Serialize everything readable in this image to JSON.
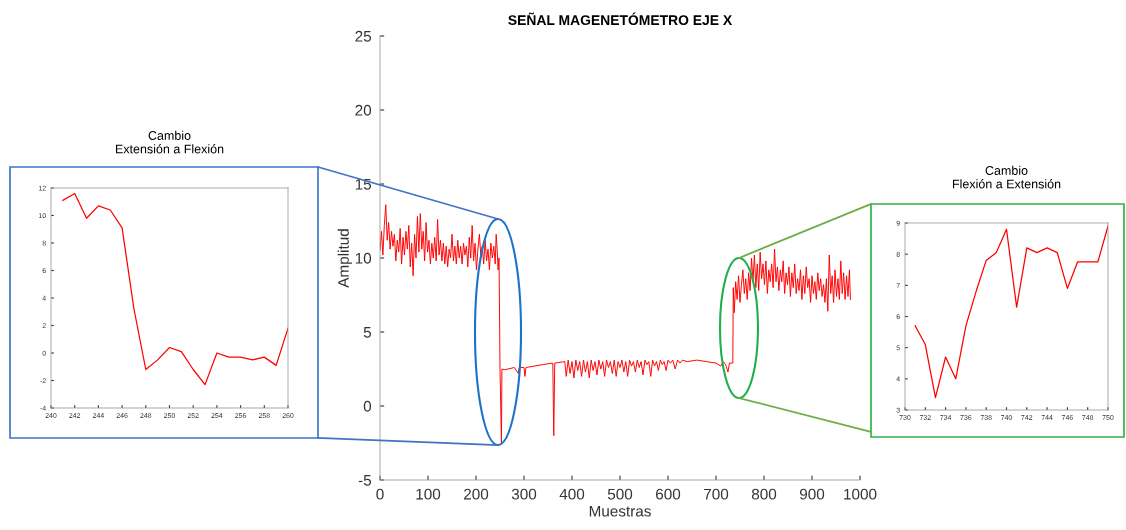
{
  "chart_data": [
    {
      "type": "line",
      "title": "SEÑAL MAGENETÓMETRO EJE X",
      "xlabel": "Muestras",
      "ylabel": "Amplitud",
      "xlim": [
        0,
        1000
      ],
      "xticks": [
        0,
        100,
        200,
        300,
        400,
        500,
        600,
        700,
        800,
        900,
        1000
      ],
      "ylim": [
        -5,
        25
      ],
      "yticks": [
        -5,
        0,
        5,
        10,
        15,
        20,
        25
      ],
      "series": [
        {
          "color": "#ff0000",
          "x": [
            0,
            3,
            6,
            9,
            12,
            15,
            18,
            21,
            24,
            27,
            30,
            33,
            36,
            39,
            42,
            45,
            48,
            51,
            54,
            57,
            60,
            63,
            66,
            69,
            72,
            75,
            78,
            81,
            84,
            87,
            90,
            93,
            96,
            99,
            102,
            105,
            108,
            111,
            114,
            117,
            120,
            123,
            126,
            129,
            132,
            135,
            138,
            141,
            144,
            147,
            150,
            153,
            156,
            159,
            162,
            165,
            168,
            171,
            174,
            177,
            180,
            183,
            186,
            189,
            192,
            195,
            198,
            201,
            204,
            207,
            210,
            213,
            216,
            219,
            222,
            225,
            228,
            231,
            234,
            237,
            240,
            242,
            244,
            246,
            248,
            250,
            253,
            254,
            260,
            280,
            288,
            290,
            300,
            302,
            304,
            340,
            360,
            362,
            364,
            385,
            388,
            392,
            396,
            400,
            404,
            408,
            412,
            416,
            420,
            424,
            428,
            432,
            436,
            440,
            444,
            448,
            452,
            456,
            460,
            464,
            468,
            472,
            476,
            480,
            484,
            488,
            492,
            496,
            500,
            504,
            508,
            512,
            516,
            520,
            524,
            528,
            532,
            536,
            540,
            544,
            548,
            552,
            556,
            560,
            564,
            568,
            572,
            576,
            580,
            584,
            588,
            592,
            596,
            600,
            605,
            610,
            615,
            620,
            625,
            630,
            640,
            660,
            680,
            700,
            710,
            715,
            720,
            725,
            728,
            735,
            736,
            738,
            741,
            744,
            747,
            750,
            753,
            756,
            759,
            762,
            765,
            768,
            771,
            774,
            777,
            780,
            783,
            786,
            789,
            792,
            795,
            798,
            801,
            804,
            807,
            810,
            813,
            816,
            819,
            822,
            825,
            828,
            831,
            834,
            837,
            840,
            843,
            846,
            849,
            852,
            855,
            858,
            861,
            864,
            867,
            870,
            873,
            876,
            879,
            882,
            885,
            888,
            891,
            894,
            897,
            900,
            903,
            906,
            909,
            912,
            915,
            918,
            921,
            924,
            927,
            930,
            933,
            936,
            939,
            942,
            945,
            948,
            951,
            954,
            957,
            960,
            963,
            966,
            969,
            972,
            975,
            978,
            980
          ],
          "values": [
            10.5,
            11.8,
            10.2,
            12.2,
            13.6,
            11.2,
            12.4,
            10.6,
            11.8,
            10.8,
            11.6,
            9.8,
            11.2,
            10.4,
            12.0,
            9.6,
            11.4,
            10.2,
            11.8,
            10.6,
            12.2,
            9.4,
            11.0,
            8.8,
            11.6,
            10.0,
            12.8,
            10.4,
            13.0,
            10.6,
            11.8,
            9.8,
            12.4,
            10.4,
            11.2,
            9.6,
            11.0,
            10.0,
            11.4,
            9.8,
            12.6,
            10.2,
            11.2,
            9.8,
            11.0,
            9.6,
            10.8,
            9.4,
            10.6,
            10.0,
            11.6,
            9.8,
            10.8,
            9.6,
            11.2,
            10.0,
            10.8,
            9.6,
            11.0,
            10.2,
            10.8,
            9.4,
            11.4,
            10.0,
            12.2,
            9.8,
            11.0,
            9.2,
            10.6,
            11.6,
            10.2,
            10.8,
            9.6,
            11.2,
            9.8,
            10.6,
            9.2,
            11.0,
            10.0,
            10.8,
            9.6,
            11.6,
            10.6,
            9.2,
            10.0,
            2.5,
            -2.5,
            2.5,
            2.45,
            2.6,
            2.2,
            2.6,
            2.6,
            2.0,
            2.6,
            2.8,
            2.9,
            -2.0,
            2.9,
            3.0,
            2.0,
            3.1,
            2.2,
            3.0,
            1.9,
            3.1,
            2.4,
            3.0,
            2.0,
            3.1,
            2.3,
            3.0,
            1.9,
            3.1,
            2.4,
            3.0,
            2.1,
            3.1,
            2.5,
            3.0,
            2.0,
            3.1,
            2.6,
            3.0,
            2.2,
            3.1,
            2.0,
            3.0,
            2.6,
            3.1,
            2.3,
            3.0,
            2.0,
            3.1,
            2.7,
            3.0,
            2.3,
            3.1,
            2.6,
            3.0,
            2.1,
            3.1,
            2.8,
            3.0,
            2.0,
            3.1,
            2.7,
            3.0,
            2.4,
            3.1,
            2.8,
            3.0,
            2.4,
            3.1,
            2.9,
            3.1,
            2.5,
            3.1,
            2.9,
            3.1,
            3.0,
            3.1,
            3.0,
            2.9,
            2.7,
            3.0,
            2.8,
            2.3,
            2.9,
            2.9,
            8.0,
            6.3,
            8.4,
            7.2,
            8.8,
            7.0,
            8.2,
            9.2,
            7.6,
            8.6,
            7.2,
            9.0,
            7.8,
            10.0,
            8.4,
            10.2,
            8.0,
            9.6,
            7.8,
            10.4,
            8.6,
            9.6,
            8.2,
            9.8,
            7.6,
            9.2,
            8.4,
            9.6,
            8.0,
            10.6,
            8.4,
            9.4,
            7.8,
            9.2,
            8.4,
            9.8,
            7.6,
            9.0,
            8.2,
            9.4,
            7.4,
            9.0,
            8.0,
            9.6,
            7.6,
            8.6,
            7.8,
            9.2,
            7.2,
            8.8,
            7.6,
            9.4,
            8.0,
            8.6,
            7.0,
            8.8,
            7.6,
            8.4,
            7.2,
            9.0,
            7.8,
            8.6,
            7.4,
            8.2,
            7.0,
            8.6,
            6.4,
            10.2,
            7.6,
            8.8,
            7.0,
            9.2,
            7.4,
            8.6,
            7.2,
            9.8,
            7.6,
            9.0,
            7.2,
            8.8,
            7.4,
            9.2,
            7.2
          ]
        }
      ]
    },
    {
      "type": "line",
      "title": "Cambio\nExtensión a Flexión",
      "xlim": [
        240,
        260
      ],
      "xticks": [
        240,
        242,
        244,
        246,
        248,
        250,
        252,
        254,
        256,
        258,
        260
      ],
      "ylim": [
        -4,
        12
      ],
      "yticks": [
        -4,
        -2,
        0,
        2,
        4,
        6,
        8,
        10,
        12
      ],
      "series": [
        {
          "color": "#ff0000",
          "x": [
            241,
            242,
            243,
            244,
            245,
            246,
            247,
            248,
            249,
            250,
            251,
            252,
            253,
            254,
            255,
            256,
            257,
            258,
            259,
            260
          ],
          "values": [
            11.1,
            11.6,
            9.8,
            10.7,
            10.4,
            9.1,
            3.2,
            -1.2,
            -0.5,
            0.4,
            0.1,
            -1.2,
            -2.3,
            0,
            -0.3,
            -0.3,
            -0.5,
            -0.3,
            -0.9,
            1.8
          ]
        }
      ]
    },
    {
      "type": "line",
      "title": "Cambio\nFlexión a Extensión",
      "xlim": [
        730,
        750
      ],
      "xticks": [
        730,
        732,
        734,
        736,
        738,
        740,
        742,
        744,
        746,
        748,
        750
      ],
      "ylim": [
        3,
        9
      ],
      "yticks": [
        3,
        4,
        5,
        6,
        7,
        8,
        9
      ],
      "series": [
        {
          "color": "#ff0000",
          "x": [
            731,
            732,
            733,
            734,
            735,
            736,
            737,
            738,
            739,
            740,
            741,
            742,
            743,
            744,
            745,
            746,
            747,
            748,
            749,
            750
          ],
          "values": [
            5.7,
            5.1,
            3.4,
            4.7,
            4.0,
            5.7,
            6.8,
            7.8,
            8.05,
            8.8,
            6.3,
            8.2,
            8.05,
            8.2,
            8.05,
            6.9,
            7.75,
            7.75,
            7.75,
            8.9
          ]
        }
      ]
    }
  ]
}
